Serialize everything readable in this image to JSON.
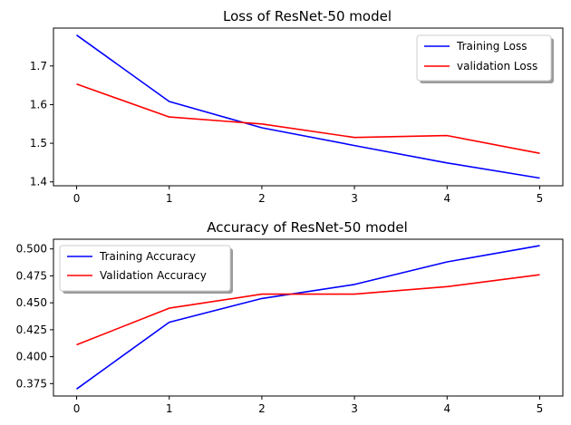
{
  "chart_data": [
    {
      "type": "line",
      "title": "Loss of ResNet-50 model",
      "x": [
        0,
        1,
        2,
        3,
        4,
        5
      ],
      "xticks": [
        "0",
        "1",
        "2",
        "3",
        "4",
        "5"
      ],
      "xlim": [
        -0.25,
        5.25
      ],
      "ylim": [
        1.39,
        1.798
      ],
      "yticks": [
        "1.4",
        "1.5",
        "1.6",
        "1.7"
      ],
      "ytick_values": [
        1.4,
        1.5,
        1.6,
        1.7
      ],
      "grid": false,
      "legend_position": "top-right",
      "series": [
        {
          "name": "Training Loss",
          "color": "#0000ff",
          "values": [
            1.78,
            1.608,
            1.54,
            1.494,
            1.449,
            1.41
          ]
        },
        {
          "name": "validation Loss",
          "color": "#ff0000",
          "values": [
            1.653,
            1.568,
            1.55,
            1.515,
            1.52,
            1.474
          ]
        }
      ]
    },
    {
      "type": "line",
      "title": "Accuracy of ResNet-50 model",
      "x": [
        0,
        1,
        2,
        3,
        4,
        5
      ],
      "xticks": [
        "0",
        "1",
        "2",
        "3",
        "4",
        "5"
      ],
      "xlim": [
        -0.25,
        5.25
      ],
      "ylim": [
        0.3635,
        0.509
      ],
      "yticks": [
        "0.375",
        "0.400",
        "0.425",
        "0.450",
        "0.475",
        "0.500"
      ],
      "ytick_values": [
        0.375,
        0.4,
        0.425,
        0.45,
        0.475,
        0.5
      ],
      "grid": false,
      "legend_position": "top-left",
      "series": [
        {
          "name": "Training Accuracy",
          "color": "#0000ff",
          "values": [
            0.37,
            0.432,
            0.454,
            0.467,
            0.488,
            0.503
          ]
        },
        {
          "name": "Validation Accuracy",
          "color": "#ff0000",
          "values": [
            0.411,
            0.445,
            0.458,
            0.458,
            0.465,
            0.476
          ]
        }
      ]
    }
  ]
}
